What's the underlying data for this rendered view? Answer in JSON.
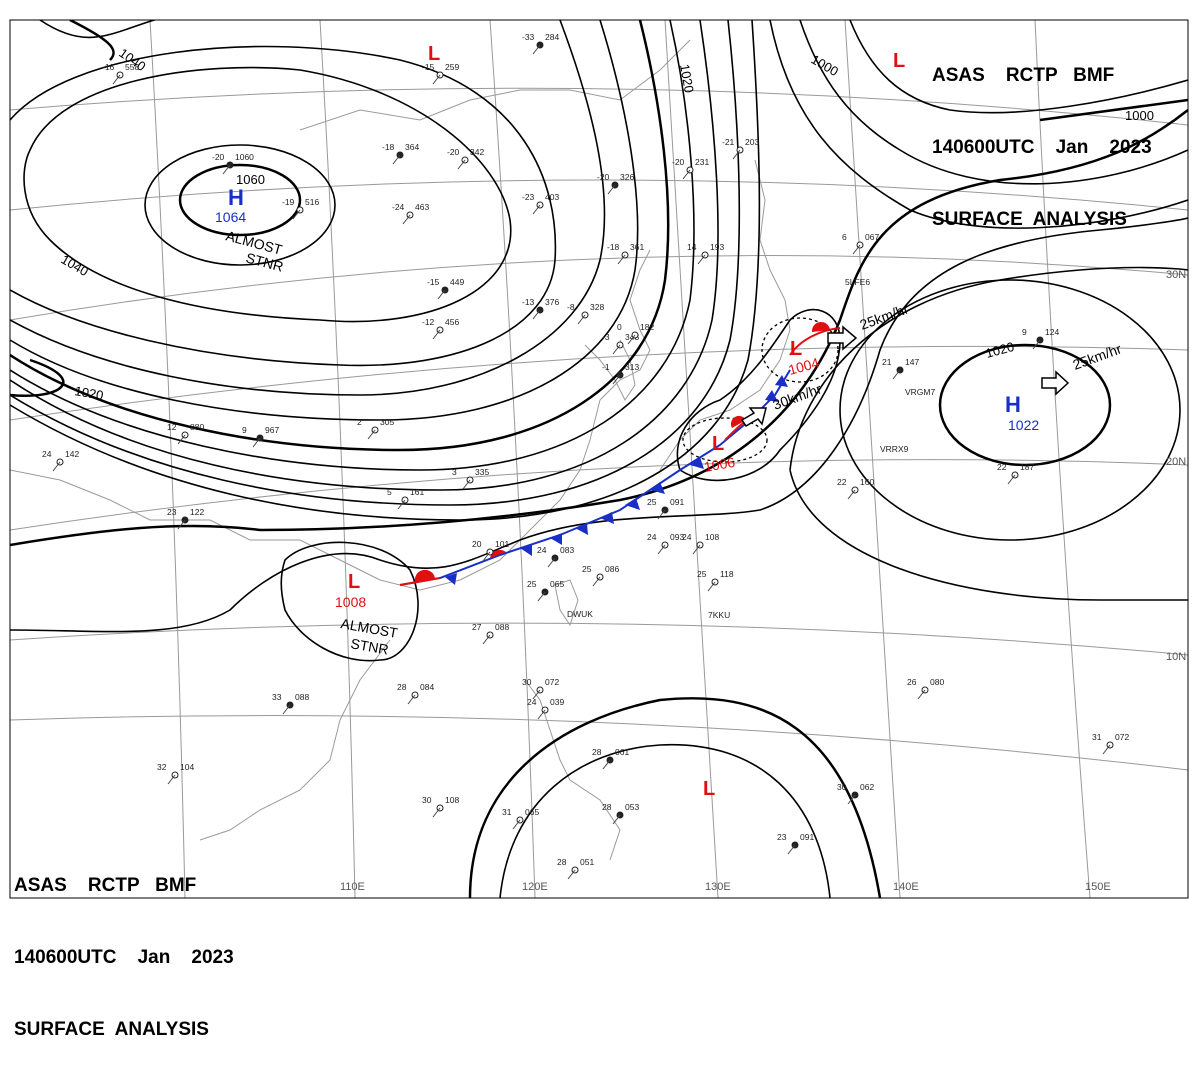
{
  "header": {
    "agency_line": "ASAS    RCTP   BMF",
    "time_line": "140600UTC    Jan    2023",
    "title_line": "SURFACE  ANALYSIS"
  },
  "grid": {
    "longitudes": [
      "110E",
      "120E",
      "130E",
      "140E",
      "150E"
    ],
    "latitudes": [
      "30N",
      "20N",
      "10N"
    ]
  },
  "isobar_labels": [
    "1040",
    "1060",
    "1040",
    "1020",
    "1020",
    "1000",
    "1000",
    "1020"
  ],
  "pressure_systems": [
    {
      "type": "H",
      "value": "1064",
      "note_1": "ALMOST",
      "note_2": "STNR"
    },
    {
      "type": "L",
      "value": "1008",
      "note_1": "ALMOST",
      "note_2": "STNR"
    },
    {
      "type": "L",
      "value": "1006"
    },
    {
      "type": "L",
      "value": "1004"
    },
    {
      "type": "H",
      "value": "1022"
    },
    {
      "type": "L"
    },
    {
      "type": "L"
    },
    {
      "type": "L"
    }
  ],
  "movements": [
    "25km/hr",
    "30km/hr",
    "25km/hr"
  ],
  "station_reports": [
    {
      "t": "-33",
      "p": "284"
    },
    {
      "t": "-15",
      "p": "259"
    },
    {
      "t": "-16",
      "p": "558"
    },
    {
      "t": "-20",
      "p": "1060"
    },
    {
      "t": "-19",
      "p": "516"
    },
    {
      "t": "-24",
      "p": "463"
    },
    {
      "t": "-18",
      "p": "364"
    },
    {
      "t": "-20",
      "p": "342"
    },
    {
      "t": "-23",
      "p": "403"
    },
    {
      "t": "-20",
      "p": "326"
    },
    {
      "t": "-20",
      "p": "231"
    },
    {
      "t": "-21",
      "p": "203"
    },
    {
      "t": "-15",
      "p": "449"
    },
    {
      "t": "-12",
      "p": "456"
    },
    {
      "t": "-18",
      "p": "361"
    },
    {
      "t": "-13",
      "p": "376"
    },
    {
      "t": "-8",
      "p": "328"
    },
    {
      "t": "-3",
      "p": "343"
    },
    {
      "t": "-1",
      "p": "313"
    },
    {
      "t": "0",
      "p": "182"
    },
    {
      "t": "12",
      "p": "880"
    },
    {
      "t": "9",
      "p": "967"
    },
    {
      "t": "2",
      "p": "305"
    },
    {
      "t": "24",
      "p": "142"
    },
    {
      "t": "23",
      "p": "122"
    },
    {
      "t": "5",
      "p": "161"
    },
    {
      "t": "3",
      "p": "335"
    },
    {
      "t": "25",
      "p": "091"
    },
    {
      "t": "24",
      "p": "093"
    },
    {
      "t": "24",
      "p": "108"
    },
    {
      "t": "24",
      "p": "083"
    },
    {
      "t": "25",
      "p": "086"
    },
    {
      "t": "25",
      "p": "118"
    },
    {
      "t": "25",
      "p": "065"
    },
    {
      "t": "27",
      "p": "088"
    },
    {
      "t": "28",
      "p": "084"
    },
    {
      "t": "33",
      "p": "088"
    },
    {
      "t": "30",
      "p": "072"
    },
    {
      "t": "24",
      "p": "039"
    },
    {
      "t": "28",
      "p": "061"
    },
    {
      "t": "30",
      "p": "108"
    },
    {
      "t": "31",
      "p": "065"
    },
    {
      "t": "28",
      "p": "053"
    },
    {
      "t": "28",
      "p": "051"
    },
    {
      "t": "32",
      "p": "104"
    },
    {
      "t": "23",
      "p": "091"
    },
    {
      "t": "26",
      "p": "080"
    },
    {
      "t": "31",
      "p": "072"
    },
    {
      "t": "30",
      "p": "062"
    },
    {
      "t": "22",
      "p": "160"
    },
    {
      "t": "22",
      "p": "187"
    },
    {
      "t": "21",
      "p": "147"
    },
    {
      "t": "6",
      "p": "067"
    },
    {
      "t": "14",
      "p": "193"
    },
    {
      "t": "9",
      "p": "124"
    },
    {
      "t": "20",
      "p": "101"
    }
  ],
  "station_ids": [
    "5LFE6",
    "VRGM7",
    "VRRX9",
    "7KKU",
    "DWUK"
  ],
  "colors": {
    "high": "#1a2fc8",
    "low": "#e01010",
    "warm_front": "#e01010",
    "cold_front": "#1a2fc8",
    "isobar": "#000000",
    "grid": "#999999",
    "coast": "#9a9a9a"
  }
}
